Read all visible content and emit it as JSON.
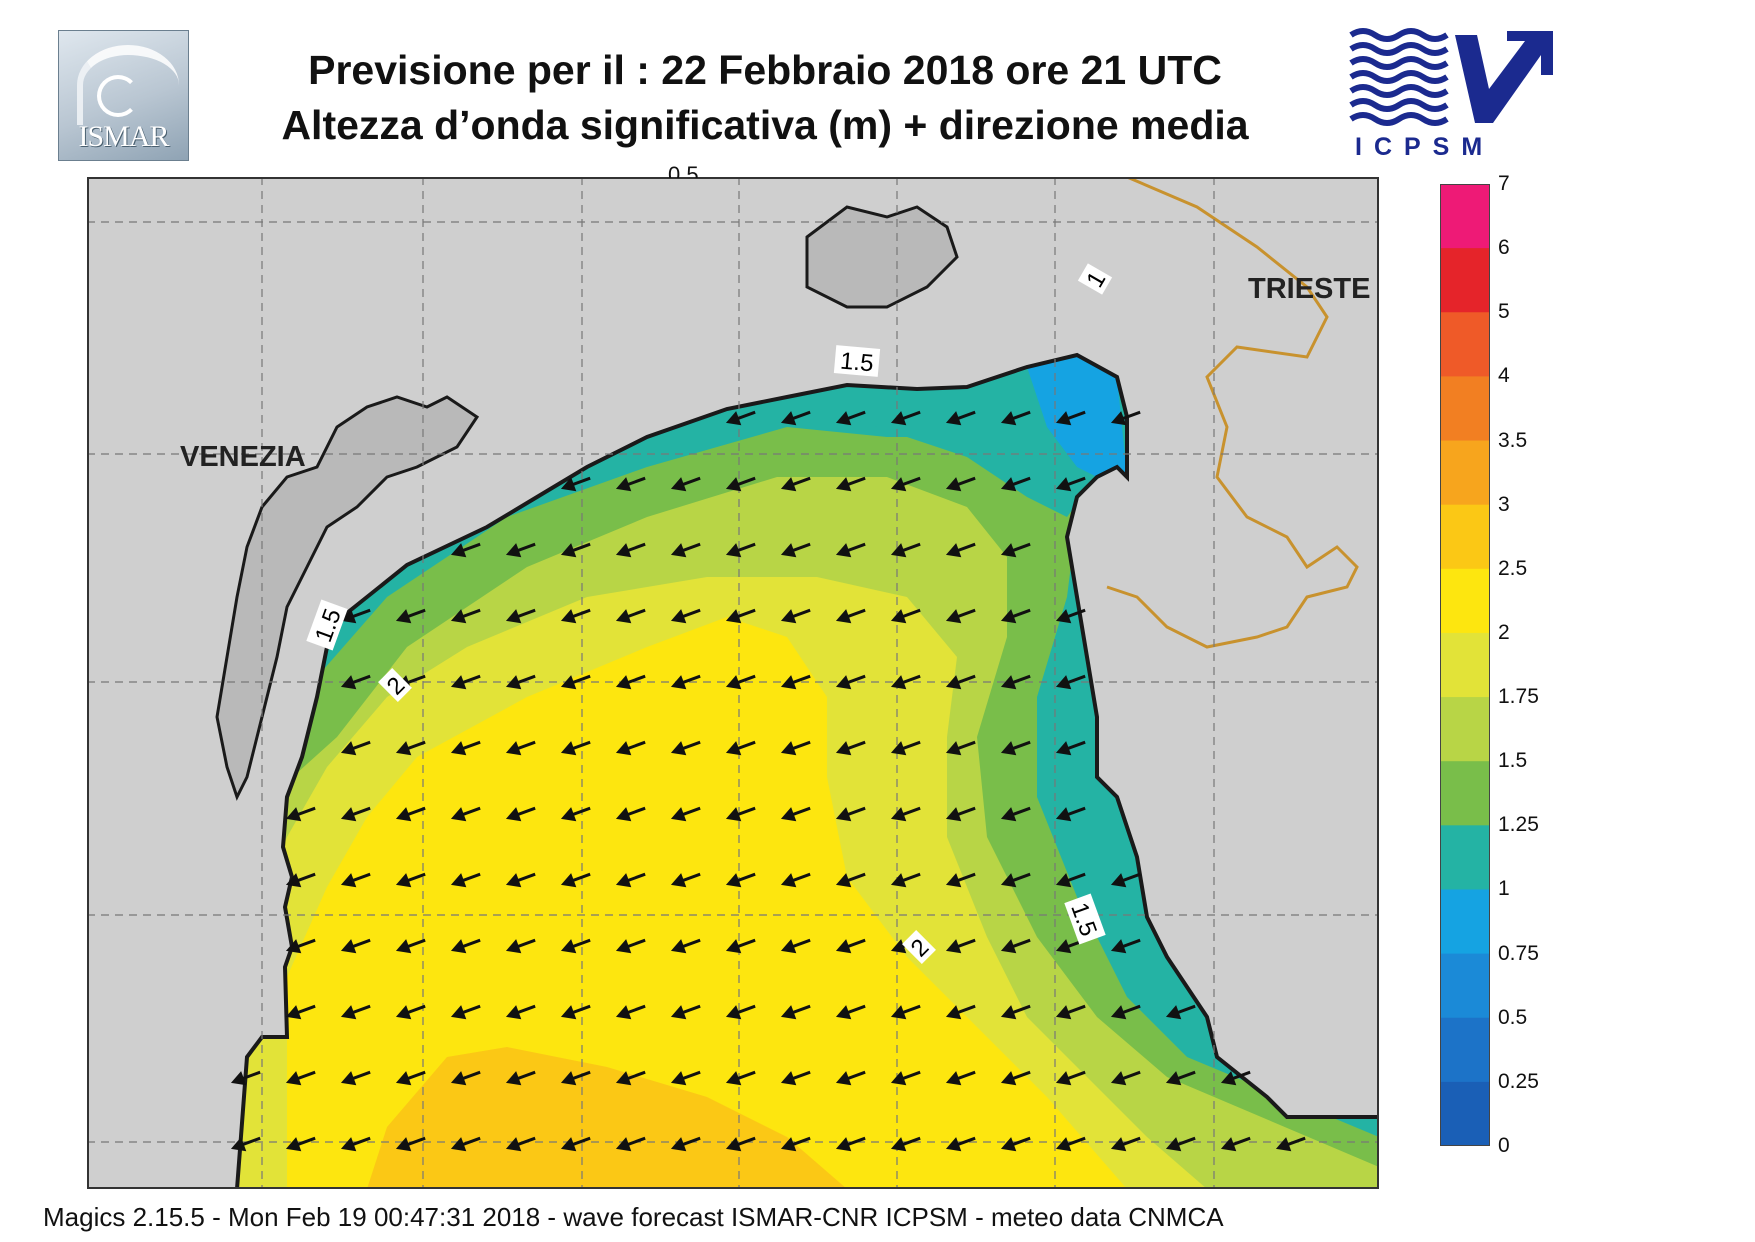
{
  "header": {
    "title_line1": "Previsione per il  :  22  Febbraio 2018   ore 21 UTC",
    "title_line2": "Altezza d’onda significativa (m) + direzione media"
  },
  "logos": {
    "left": {
      "text": "ISMAR"
    },
    "right": {
      "text": "ICPSM"
    }
  },
  "map": {
    "cities": [
      "VENEZIA",
      "TRIESTE"
    ],
    "contour_labels": [
      "1",
      "1.5",
      "1.5",
      "2",
      "1.5",
      "2"
    ],
    "top_partial_label": "0.5",
    "arrow_direction": "towards south-west",
    "colors": {
      "land": "#cfcfcf",
      "border_line": "#c8922e",
      "coast": "#1a1a1a"
    }
  },
  "colorbar": {
    "ticks": [
      "7",
      "6",
      "5",
      "4",
      "3.5",
      "3",
      "2.5",
      "2",
      "1.75",
      "1.5",
      "1.25",
      "1",
      "0.75",
      "0.5",
      "0.25",
      "0"
    ],
    "colors": [
      "#ee1a76",
      "#e5242a",
      "#ef5a28",
      "#f27f22",
      "#f7a51d",
      "#fbc815",
      "#fde60f",
      "#e2e338",
      "#b8d546",
      "#79be4a",
      "#24b3a4",
      "#15a3e2",
      "#1b8ad7",
      "#1c73c8",
      "#1a5fb6"
    ]
  },
  "footer": {
    "text": "Magics 2.15.5 - Mon Feb 19 00:47:31 2018 - wave forecast  ISMAR-CNR  ICPSM - meteo data   CNMCA"
  }
}
